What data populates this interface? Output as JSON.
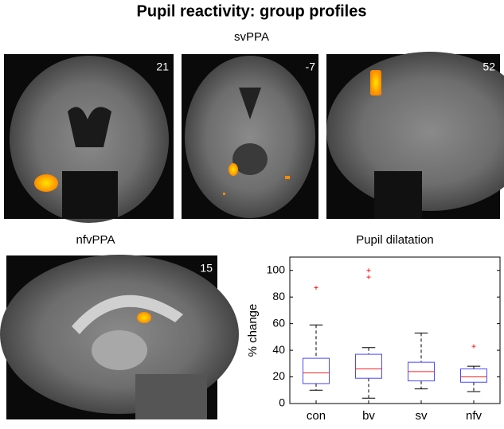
{
  "title": "Pupil reactivity: group profiles",
  "svppa_label": "svPPA",
  "nfvppa_label": "nfvPPA",
  "panels": [
    {
      "slice": "21"
    },
    {
      "slice": "-7"
    },
    {
      "slice": "52"
    },
    {
      "slice": "15"
    }
  ],
  "chart_data": {
    "type": "box",
    "title": "Pupil dilatation",
    "y_label": "% change",
    "categories": [
      "con",
      "bv",
      "sv",
      "nfv"
    ],
    "boxes": [
      {
        "min": 10,
        "q1": 15,
        "median": 23,
        "q3": 34,
        "max": 59,
        "outliers": [
          87
        ]
      },
      {
        "min": 4,
        "q1": 19,
        "median": 26,
        "q3": 37,
        "max": 42,
        "outliers": [
          95,
          100
        ]
      },
      {
        "min": 11,
        "q1": 17,
        "median": 24,
        "q3": 31,
        "max": 53,
        "outliers": []
      },
      {
        "min": 9,
        "q1": 16,
        "median": 20,
        "q3": 26,
        "max": 28,
        "outliers": [
          43
        ]
      }
    ],
    "box_color": "#4a4aff",
    "median_color": "#ff2020",
    "outlier_color": "#ff2020",
    "ylim": [
      0,
      110
    ],
    "yticks": [
      0,
      20,
      40,
      60,
      80,
      100
    ]
  }
}
